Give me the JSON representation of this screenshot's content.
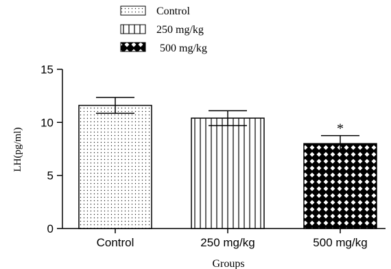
{
  "chart_data": {
    "type": "bar",
    "title": "",
    "xlabel": "Groups",
    "ylabel": "LH(pg/ml)",
    "ylim": [
      0,
      15
    ],
    "yticks": [
      0,
      5,
      10,
      15
    ],
    "categories": [
      "Control",
      "250 mg/kg",
      "500 mg/kg"
    ],
    "values": [
      11.6,
      10.4,
      8.0
    ],
    "errors": [
      0.75,
      0.7,
      0.75
    ],
    "annotations": [
      "",
      "",
      "*"
    ],
    "patterns": [
      "dots",
      "vertical-lines",
      "diamond-checker"
    ],
    "legend": {
      "position": "top",
      "entries": [
        "Control",
        "250 mg/kg",
        "500 mg/kg"
      ]
    },
    "grid": false
  }
}
